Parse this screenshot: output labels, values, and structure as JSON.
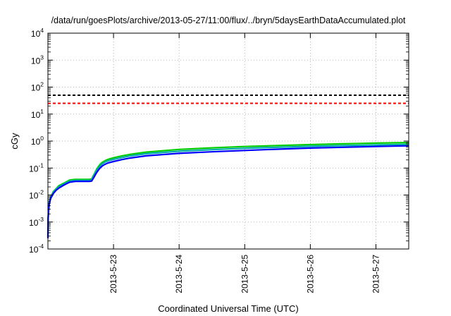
{
  "chart_data": {
    "type": "line",
    "title": "/data/run/goesPlots/archive/2013-05-27/11:00/flux/../bryn/5daysEarthDataAccumulated.plot",
    "xlabel": "Coordinated Universal Time (UTC)",
    "ylabel": "cGy",
    "x_ticks": [
      "2013-5-23",
      "2013-5-24",
      "2013-5-25",
      "2013-5-26",
      "2013-5-27"
    ],
    "xlim": [
      "2013-05-22 00:00",
      "2013-05-27 12:00"
    ],
    "y_scale": "log",
    "ylim": [
      0.0001,
      10000
    ],
    "y_ticks": [
      {
        "base": "10",
        "exp": "-4"
      },
      {
        "base": "10",
        "exp": "-3"
      },
      {
        "base": "10",
        "exp": "-2"
      },
      {
        "base": "10",
        "exp": "-1"
      },
      {
        "base": "10",
        "exp": "0"
      },
      {
        "base": "10",
        "exp": "1"
      },
      {
        "base": "10",
        "exp": "2"
      },
      {
        "base": "10",
        "exp": "3"
      },
      {
        "base": "10",
        "exp": "4"
      }
    ],
    "grid": true,
    "series": [
      {
        "color": "#000000",
        "style": "dashed",
        "x": [
          "2013-05-22 00:00",
          "2013-05-27 12:00"
        ],
        "y": [
          50,
          50
        ]
      },
      {
        "color": "#ff0000",
        "style": "dashed",
        "x": [
          "2013-05-22 00:00",
          "2013-05-27 12:00"
        ],
        "y": [
          25,
          25
        ]
      },
      {
        "color": "#00cc00",
        "style": "solid",
        "x": [
          "2013-05-22 00:00",
          "2013-05-22 00:01",
          "2013-05-22 00:05",
          "2013-05-22 00:15",
          "2013-05-22 00:30",
          "2013-05-22 01:00",
          "2013-05-22 02:00",
          "2013-05-22 03:00",
          "2013-05-22 04:00",
          "2013-05-22 06:00",
          "2013-05-22 08:00",
          "2013-05-22 10:00",
          "2013-05-22 15:00",
          "2013-05-22 16:00",
          "2013-05-22 16:30",
          "2013-05-22 17:00",
          "2013-05-22 17:30",
          "2013-05-22 18:00",
          "2013-05-22 18:30",
          "2013-05-22 19:00",
          "2013-05-22 19:30",
          "2013-05-22 20:00",
          "2013-05-22 21:00",
          "2013-05-22 22:00",
          "2013-05-23 00:00",
          "2013-05-23 03:00",
          "2013-05-23 06:00",
          "2013-05-23 12:00",
          "2013-05-24 00:00",
          "2013-05-24 12:00",
          "2013-05-25 00:00",
          "2013-05-25 12:00",
          "2013-05-26 00:00",
          "2013-05-26 12:00",
          "2013-05-27 00:00",
          "2013-05-27 12:00"
        ],
        "y": [
          0.0003,
          0.0006,
          0.0015,
          0.003,
          0.0055,
          0.0085,
          0.0135,
          0.017,
          0.022,
          0.028,
          0.036,
          0.038,
          0.038,
          0.039,
          0.05,
          0.06,
          0.078,
          0.095,
          0.115,
          0.133,
          0.15,
          0.165,
          0.19,
          0.21,
          0.24,
          0.28,
          0.32,
          0.39,
          0.49,
          0.56,
          0.63,
          0.68,
          0.74,
          0.79,
          0.84,
          0.88
        ]
      },
      {
        "color": "#00aaaa",
        "style": "solid",
        "x": [
          "2013-05-22 00:00",
          "2013-05-22 00:01",
          "2013-05-22 00:05",
          "2013-05-22 00:15",
          "2013-05-22 00:30",
          "2013-05-22 01:00",
          "2013-05-22 02:00",
          "2013-05-22 03:00",
          "2013-05-22 04:00",
          "2013-05-22 06:00",
          "2013-05-22 08:00",
          "2013-05-22 10:00",
          "2013-05-22 15:00",
          "2013-05-22 16:00",
          "2013-05-22 16:30",
          "2013-05-22 17:00",
          "2013-05-22 17:30",
          "2013-05-22 18:00",
          "2013-05-22 18:30",
          "2013-05-22 19:00",
          "2013-05-22 19:30",
          "2013-05-22 20:00",
          "2013-05-22 21:00",
          "2013-05-22 22:00",
          "2013-05-23 00:00",
          "2013-05-23 03:00",
          "2013-05-23 06:00",
          "2013-05-23 12:00",
          "2013-05-24 00:00",
          "2013-05-24 12:00",
          "2013-05-25 00:00",
          "2013-05-25 12:00",
          "2013-05-26 00:00",
          "2013-05-26 12:00",
          "2013-05-27 00:00",
          "2013-05-27 12:00"
        ],
        "y": [
          0.00028,
          0.00055,
          0.0014,
          0.0028,
          0.005,
          0.008,
          0.0125,
          0.016,
          0.02,
          0.026,
          0.033,
          0.035,
          0.035,
          0.036,
          0.045,
          0.055,
          0.07,
          0.085,
          0.1,
          0.117,
          0.132,
          0.146,
          0.168,
          0.185,
          0.21,
          0.245,
          0.28,
          0.34,
          0.42,
          0.48,
          0.54,
          0.59,
          0.64,
          0.68,
          0.72,
          0.76
        ]
      },
      {
        "color": "#0000ff",
        "style": "solid",
        "x": [
          "2013-05-22 00:00",
          "2013-05-22 00:01",
          "2013-05-22 00:05",
          "2013-05-22 00:15",
          "2013-05-22 00:30",
          "2013-05-22 01:00",
          "2013-05-22 02:00",
          "2013-05-22 03:00",
          "2013-05-22 04:00",
          "2013-05-22 06:00",
          "2013-05-22 08:00",
          "2013-05-22 10:00",
          "2013-05-22 15:00",
          "2013-05-22 16:00",
          "2013-05-22 16:30",
          "2013-05-22 17:00",
          "2013-05-22 17:30",
          "2013-05-22 18:00",
          "2013-05-22 18:30",
          "2013-05-22 19:00",
          "2013-05-22 19:30",
          "2013-05-22 20:00",
          "2013-05-22 21:00",
          "2013-05-22 22:00",
          "2013-05-23 00:00",
          "2013-05-23 03:00",
          "2013-05-23 06:00",
          "2013-05-23 12:00",
          "2013-05-24 00:00",
          "2013-05-24 12:00",
          "2013-05-25 00:00",
          "2013-05-25 12:00",
          "2013-05-26 00:00",
          "2013-05-26 12:00",
          "2013-05-27 00:00",
          "2013-05-27 12:00"
        ],
        "y": [
          0.00025,
          0.0005,
          0.0013,
          0.0026,
          0.0046,
          0.0075,
          0.0115,
          0.015,
          0.018,
          0.024,
          0.03,
          0.032,
          0.032,
          0.033,
          0.04,
          0.048,
          0.06,
          0.072,
          0.085,
          0.098,
          0.11,
          0.122,
          0.14,
          0.155,
          0.175,
          0.205,
          0.235,
          0.285,
          0.35,
          0.4,
          0.45,
          0.5,
          0.55,
          0.59,
          0.63,
          0.67
        ]
      }
    ]
  }
}
